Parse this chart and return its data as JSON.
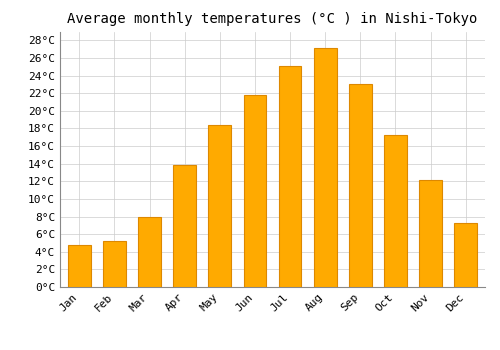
{
  "title": "Average monthly temperatures (°C ) in Nishi-Tokyo",
  "months": [
    "Jan",
    "Feb",
    "Mar",
    "Apr",
    "May",
    "Jun",
    "Jul",
    "Aug",
    "Sep",
    "Oct",
    "Nov",
    "Dec"
  ],
  "temperatures": [
    4.8,
    5.2,
    8.0,
    13.9,
    18.4,
    21.8,
    25.1,
    27.1,
    23.0,
    17.2,
    12.1,
    7.3
  ],
  "bar_color": "#FFAA00",
  "bar_edge_color": "#DD8800",
  "background_color": "#FFFFFF",
  "grid_color": "#CCCCCC",
  "ylim": [
    0,
    29
  ],
  "yticks": [
    0,
    2,
    4,
    6,
    8,
    10,
    12,
    14,
    16,
    18,
    20,
    22,
    24,
    26,
    28
  ],
  "title_fontsize": 10,
  "tick_fontsize": 8,
  "font_family": "monospace"
}
